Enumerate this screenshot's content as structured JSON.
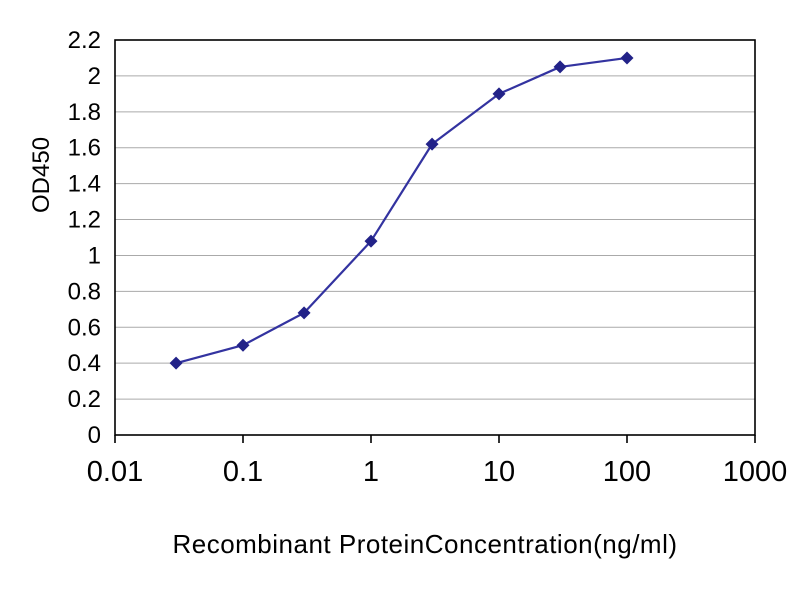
{
  "chart_data": {
    "type": "line",
    "title": "",
    "xlabel": "Recombinant ProteinConcentration(ng/ml)",
    "ylabel": "OD450",
    "x_scale": "log",
    "x": [
      0.03,
      0.1,
      0.3,
      1,
      3,
      10,
      30,
      100
    ],
    "y": [
      0.4,
      0.5,
      0.68,
      1.08,
      1.62,
      1.9,
      2.05,
      2.1
    ],
    "xlim": [
      0.01,
      1000
    ],
    "ylim": [
      0,
      2.2
    ],
    "x_ticks": [
      0.01,
      0.1,
      1,
      10,
      100,
      1000
    ],
    "y_ticks": [
      0,
      0.2,
      0.4,
      0.6,
      0.8,
      1,
      1.2,
      1.4,
      1.6,
      1.8,
      2,
      2.2
    ],
    "grid": "horizontal",
    "legend": "none",
    "marker": "diamond",
    "line_color": "#3333A0",
    "marker_color": "#222288",
    "grid_color": "#aaaaaa",
    "axis_color": "#000000",
    "background": "#ffffff"
  }
}
